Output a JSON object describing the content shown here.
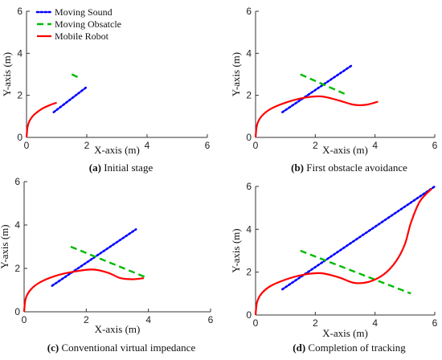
{
  "legend": [
    {
      "label": "Moving Sound",
      "color": "#0000ff",
      "style": "dotted"
    },
    {
      "label": "Moving Obsatcle",
      "color": "#00bb00",
      "style": "dashed"
    },
    {
      "label": "Mobile Robot",
      "color": "#ff0000",
      "style": "solid"
    }
  ],
  "colors": {
    "sound": "#0000ff",
    "obstacle": "#00bb00",
    "robot": "#ff0000"
  },
  "chart_data": [
    {
      "type": "line",
      "panel_label": "(a)",
      "caption": "Initial stage",
      "xlabel": "X-axis (m)",
      "ylabel": "Y-axis (m)",
      "xlim": [
        0,
        6
      ],
      "ylim": [
        0,
        6
      ],
      "xticks": [
        "0",
        "2",
        "4",
        "6"
      ],
      "yticks": [
        "0",
        "2",
        "4",
        "6"
      ],
      "series": [
        {
          "name": "Moving Sound",
          "x": [
            0.9,
            2.0
          ],
          "y": [
            1.2,
            2.4
          ]
        },
        {
          "name": "Moving Obsatcle",
          "x": [
            1.5,
            1.8
          ],
          "y": [
            3.0,
            2.8
          ]
        },
        {
          "name": "Mobile Robot",
          "x": [
            0.0,
            0.05,
            0.2,
            0.5,
            0.8,
            1.0
          ],
          "y": [
            0.0,
            0.6,
            1.0,
            1.35,
            1.55,
            1.65
          ]
        }
      ]
    },
    {
      "type": "line",
      "panel_label": "(b)",
      "caption": "First obstacle avoidance",
      "xlabel": "X-axis (m)",
      "ylabel": "Y-axis (m)",
      "xlim": [
        0,
        6
      ],
      "ylim": [
        0,
        6
      ],
      "xticks": [
        "0",
        "2",
        "4",
        "6"
      ],
      "yticks": [
        "0",
        "2",
        "4",
        "6"
      ],
      "series": [
        {
          "name": "Moving Sound",
          "x": [
            0.9,
            3.2
          ],
          "y": [
            1.2,
            3.4
          ]
        },
        {
          "name": "Moving Obsatcle",
          "x": [
            1.5,
            3.1
          ],
          "y": [
            3.0,
            2.0
          ]
        },
        {
          "name": "Mobile Robot",
          "x": [
            0.0,
            0.05,
            0.2,
            0.5,
            1.0,
            1.6,
            2.2,
            2.8,
            3.3,
            3.7,
            4.1
          ],
          "y": [
            0.0,
            0.6,
            1.0,
            1.35,
            1.65,
            1.88,
            1.95,
            1.75,
            1.55,
            1.55,
            1.7
          ]
        }
      ]
    },
    {
      "type": "line",
      "panel_label": "(c)",
      "caption": "Conventional virtual impedance",
      "xlabel": "X-axis (m)",
      "ylabel": "Y-axis (m)",
      "xlim": [
        0,
        6
      ],
      "ylim": [
        0,
        6
      ],
      "xticks": [
        "0",
        "2",
        "4",
        "6"
      ],
      "yticks": [
        "0",
        "2",
        "4",
        "6"
      ],
      "series": [
        {
          "name": "Moving Sound",
          "x": [
            0.9,
            3.6
          ],
          "y": [
            1.2,
            3.8
          ]
        },
        {
          "name": "Moving Obsatcle",
          "x": [
            1.5,
            3.9
          ],
          "y": [
            3.0,
            1.6
          ]
        },
        {
          "name": "Mobile Robot",
          "x": [
            0.0,
            0.05,
            0.2,
            0.5,
            1.0,
            1.6,
            2.2,
            2.7,
            3.1,
            3.5,
            3.85
          ],
          "y": [
            0.0,
            0.6,
            1.0,
            1.35,
            1.65,
            1.85,
            1.95,
            1.8,
            1.55,
            1.5,
            1.55
          ]
        }
      ]
    },
    {
      "type": "line",
      "panel_label": "(d)",
      "caption": "Completion of tracking",
      "xlabel": "X-axis (m)",
      "ylabel": "Y-axis (m)",
      "xlim": [
        0,
        6
      ],
      "ylim": [
        0,
        6
      ],
      "xticks": [
        "0",
        "2",
        "4",
        "6"
      ],
      "yticks": [
        "0",
        "2",
        "4",
        "6"
      ],
      "series": [
        {
          "name": "Moving Sound",
          "x": [
            0.9,
            6.0
          ],
          "y": [
            1.2,
            6.0
          ]
        },
        {
          "name": "Moving Obsatcle",
          "x": [
            1.5,
            5.2
          ],
          "y": [
            3.0,
            1.0
          ]
        },
        {
          "name": "Mobile Robot",
          "x": [
            0.0,
            0.05,
            0.2,
            0.5,
            1.0,
            1.6,
            2.2,
            2.8,
            3.3,
            3.8,
            4.3,
            4.7,
            5.0,
            5.2,
            5.5,
            5.9
          ],
          "y": [
            0.0,
            0.6,
            1.0,
            1.35,
            1.65,
            1.88,
            1.95,
            1.75,
            1.5,
            1.55,
            1.9,
            2.5,
            3.3,
            4.3,
            5.3,
            5.9
          ]
        }
      ]
    }
  ]
}
